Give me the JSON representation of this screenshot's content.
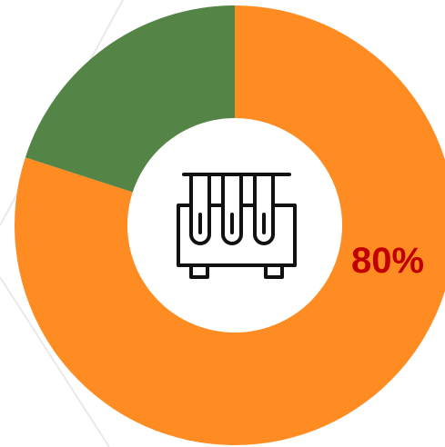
{
  "chart_data": {
    "type": "pie",
    "donut": true,
    "slices": [
      {
        "value": 80,
        "color": "#FF8C22"
      },
      {
        "value": 20,
        "color": "#548547"
      }
    ],
    "data_label": "80%",
    "data_label_color": "#C00000",
    "center_icon": "test-tubes-rack-icon"
  }
}
